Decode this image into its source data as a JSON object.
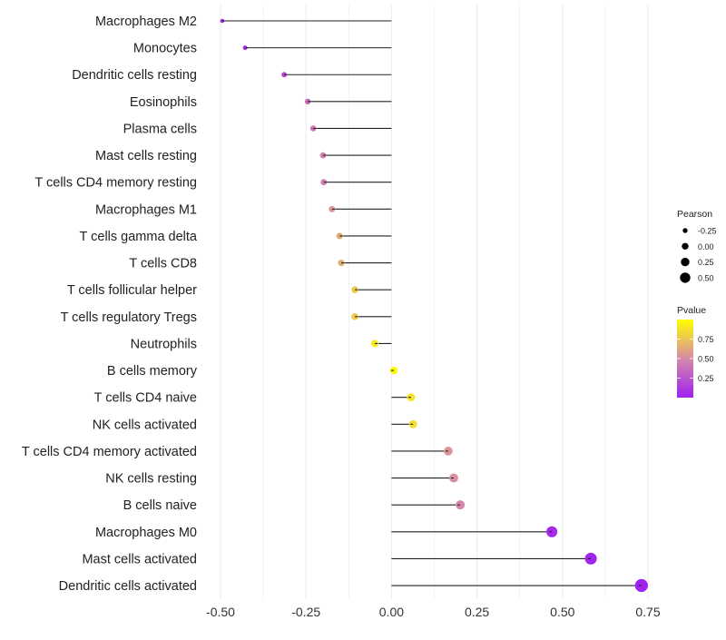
{
  "chart_data": {
    "type": "lollipop",
    "title": "",
    "xlabel": "",
    "ylabel": "",
    "xlim": [
      -0.52,
      0.77
    ],
    "x_ticks": [
      -0.5,
      -0.25,
      0,
      0.25,
      0.5,
      0.75
    ],
    "x_tick_labels": [
      "-0.50",
      "-0.25",
      "0.00",
      "0.25",
      "0.50",
      "0.75"
    ],
    "grid": true,
    "categories": [
      "Macrophages M2",
      "Monocytes",
      "Dendritic cells resting",
      "Eosinophils",
      "Plasma cells",
      "Mast cells resting",
      "T cells CD4 memory resting",
      "Macrophages M1",
      "T cells gamma delta",
      "T cells CD8",
      "T cells follicular helper",
      "T cells regulatory  Tregs ",
      "Neutrophils",
      "B cells memory",
      "T cells CD4 naive",
      "NK cells activated",
      "T cells CD4 memory activated",
      "NK cells resting",
      "B cells naive",
      "Macrophages M0",
      "Mast cells activated",
      "Dendritic cells activated"
    ],
    "pearson": [
      -0.495,
      -0.428,
      -0.314,
      -0.245,
      -0.229,
      -0.2,
      -0.198,
      -0.174,
      -0.152,
      -0.147,
      -0.107,
      -0.107,
      -0.049,
      0.007,
      0.057,
      0.063,
      0.166,
      0.182,
      0.201,
      0.469,
      0.583,
      0.731
    ],
    "pvalue": [
      0.02,
      0.05,
      0.2,
      0.35,
      0.4,
      0.45,
      0.45,
      0.55,
      0.65,
      0.65,
      0.78,
      0.78,
      0.9,
      0.98,
      0.88,
      0.86,
      0.55,
      0.52,
      0.48,
      0.05,
      0.02,
      0.01
    ],
    "legend_size": {
      "title": "Pearson",
      "values": [
        -0.25,
        0,
        0.25,
        0.5
      ],
      "labels": [
        "-0.25",
        "0.00",
        "0.25",
        "0.50"
      ]
    },
    "legend_color": {
      "title": "Pvalue",
      "labels": [
        "0.25",
        "0.50",
        "0.75"
      ],
      "values": [
        0.25,
        0.5,
        0.75
      ],
      "low": "#A020F0",
      "mid": "#D68AA8",
      "high": "#FFFF00"
    },
    "legend_position": "right"
  }
}
